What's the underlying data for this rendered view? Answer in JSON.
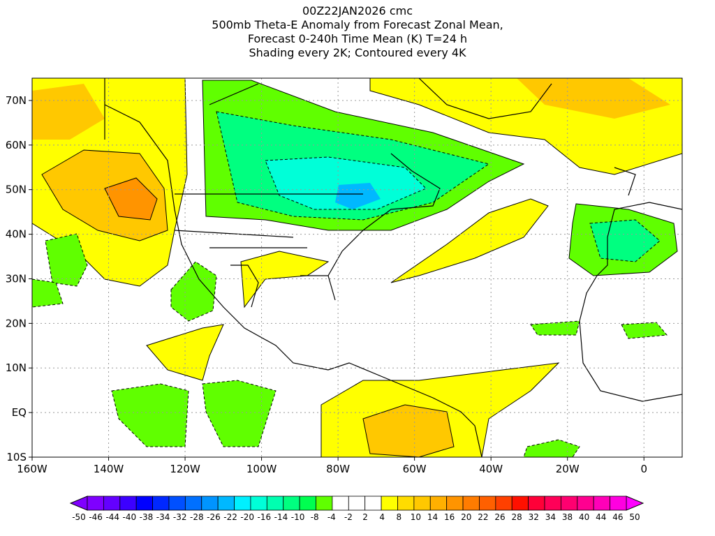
{
  "title": {
    "line1": "00Z22JAN2026 cmc",
    "line2": "500mb Theta-E Anomaly from Forecast Zonal Mean,",
    "line3": "Forecast 0-240h Time Mean (K) T=24 h",
    "line4": "Shading every 2K; Contoured every 4K"
  },
  "axes": {
    "lat_labels": [
      "70N",
      "60N",
      "50N",
      "40N",
      "30N",
      "20N",
      "10N",
      "EQ",
      "10S"
    ],
    "lon_labels": [
      "160W",
      "140W",
      "120W",
      "100W",
      "80W",
      "60W",
      "40W",
      "20W",
      "0"
    ]
  },
  "colorbar": {
    "labels": [
      "-50",
      "-46",
      "-44",
      "-40",
      "-38",
      "-34",
      "-32",
      "-28",
      "-26",
      "-22",
      "-20",
      "-16",
      "-14",
      "-10",
      "-8",
      "-4",
      "-2",
      "2",
      "4",
      "8",
      "10",
      "14",
      "16",
      "20",
      "22",
      "26",
      "28",
      "32",
      "34",
      "38",
      "40",
      "44",
      "46",
      "50"
    ],
    "colors": [
      "#7f00ff",
      "#6400ff",
      "#3c00ff",
      "#0000ff",
      "#0028ff",
      "#0050ff",
      "#0070ff",
      "#0094ff",
      "#00b8ff",
      "#00f0ff",
      "#00ffd8",
      "#00ffb0",
      "#00ff80",
      "#00ff50",
      "#60ff00",
      "#ffffff",
      "#ffffff",
      "#ffffff",
      "#ffff00",
      "#ffdc00",
      "#ffc800",
      "#ffb000",
      "#ff9400",
      "#ff7c00",
      "#ff6000",
      "#ff4000",
      "#ff1000",
      "#ff0038",
      "#ff0058",
      "#ff0070",
      "#ff0090",
      "#ff00b8",
      "#ff00e0"
    ],
    "low_arrow_color": "#8000ff",
    "high_arrow_color": "#ff00ff"
  }
}
